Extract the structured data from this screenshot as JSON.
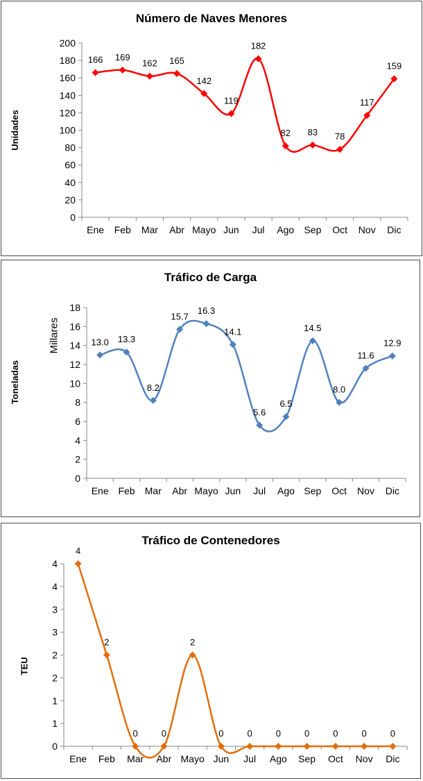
{
  "chart_data": [
    {
      "type": "line",
      "title": "Número de Naves Menores",
      "ylabel": "Unidades",
      "categories": [
        "Ene",
        "Feb",
        "Mar",
        "Abr",
        "Mayo",
        "Jun",
        "Jul",
        "Ago",
        "Sep",
        "Oct",
        "Nov",
        "Dic"
      ],
      "values": [
        166,
        169,
        162,
        165,
        142,
        119,
        182,
        82,
        83,
        78,
        117,
        159
      ],
      "data_labels": [
        "166",
        "169",
        "162",
        "165",
        "142",
        "119",
        "182",
        "82",
        "83",
        "78",
        "117",
        "159"
      ],
      "ylim": [
        0,
        200
      ],
      "yticks": [
        0,
        20,
        40,
        60,
        80,
        100,
        120,
        140,
        160,
        180,
        200
      ],
      "ytick_labels": [
        "0",
        "20",
        "40",
        "60",
        "80",
        "100",
        "120",
        "140",
        "160",
        "180",
        "200"
      ],
      "color": "#ff0000",
      "smooth": true,
      "grid": false,
      "legend": "none"
    },
    {
      "type": "line",
      "title": "Tráfico de Carga",
      "ylabel": "Toneladas",
      "units_label": "Millares",
      "categories": [
        "Ene",
        "Feb",
        "Mar",
        "Abr",
        "Mayo",
        "Jun",
        "Jul",
        "Ago",
        "Sep",
        "Oct",
        "Nov",
        "Dic"
      ],
      "values": [
        13.0,
        13.3,
        8.2,
        15.7,
        16.3,
        14.1,
        5.6,
        6.5,
        14.5,
        8.0,
        11.6,
        12.9
      ],
      "data_labels": [
        "13.0",
        "13.3",
        "8.2",
        "15.7",
        "16.3",
        "14.1",
        "5.6",
        "6.5",
        "14.5",
        "8.0",
        "11.6",
        "12.9"
      ],
      "ylim": [
        0,
        18
      ],
      "yticks": [
        0,
        2,
        4,
        6,
        8,
        10,
        12,
        14,
        16,
        18
      ],
      "ytick_labels": [
        "0",
        "2",
        "4",
        "6",
        "8",
        "10",
        "12",
        "14",
        "16",
        "18"
      ],
      "color": "#4f81bd",
      "smooth": true,
      "grid": false,
      "legend": "none"
    },
    {
      "type": "line",
      "title": "Tráfico de Contenedores",
      "ylabel": "TEU",
      "categories": [
        "Ene",
        "Feb",
        "Mar",
        "Abr",
        "Mayo",
        "Jun",
        "Jul",
        "Ago",
        "Sep",
        "Oct",
        "Nov",
        "Dic"
      ],
      "values": [
        4,
        2,
        0,
        0,
        2,
        0,
        0,
        0,
        0,
        0,
        0,
        0
      ],
      "data_labels": [
        "4",
        "2",
        "0",
        "0",
        "2",
        "0",
        "0",
        "0",
        "0",
        "0",
        "0",
        "0"
      ],
      "ylim": [
        0,
        4
      ],
      "yticks": [
        0,
        0.5,
        1,
        1.5,
        2,
        2.5,
        3,
        3.5,
        4
      ],
      "ytick_labels": [
        "0",
        "1",
        "1",
        "2",
        "2",
        "3",
        "3",
        "4",
        "4"
      ],
      "color": "#e36c09",
      "smooth": true,
      "grid": false,
      "legend": "none"
    }
  ]
}
